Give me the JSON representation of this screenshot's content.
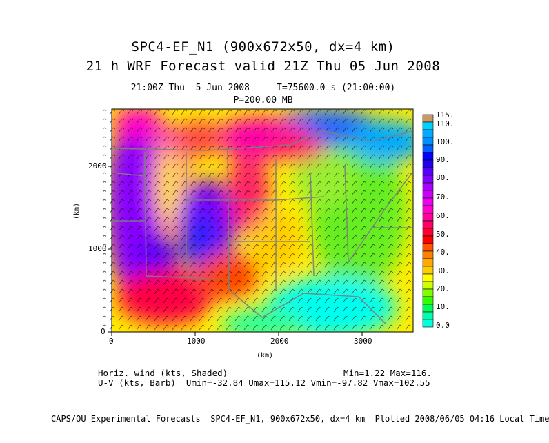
{
  "titles": {
    "line1": "SPC4-EF_N1 (900x672x50, dx=4 km)",
    "line2": "21 h WRF Forecast valid 21Z Thu 05 Jun 2008",
    "line3": "21:00Z Thu  5 Jun 2008     T=75600.0 s (21:00:00)",
    "line4": "P=200.00 MB"
  },
  "axes": {
    "x_ticks": [
      "0",
      "1000",
      "2000",
      "3000"
    ],
    "y_ticks": [
      "0",
      "1000",
      "2000"
    ],
    "x_label": "(km)",
    "y_label": "(km)"
  },
  "colorbar": {
    "labels": [
      "115.",
      "110.",
      "100.",
      "90.",
      "80.",
      "70.",
      "60.",
      "50.",
      "40.",
      "30.",
      "20.",
      "10.",
      "0.0"
    ],
    "colors": [
      "#cc9966",
      "#00d2ff",
      "#0090ff",
      "#0000ff",
      "#8000ff",
      "#cc00ff",
      "#ff00cc",
      "#ff0066",
      "#ff0000",
      "#ff8000",
      "#ffff00",
      "#80ff00",
      "#00ff00",
      "#00ffaa",
      "#00ffff"
    ]
  },
  "info": {
    "field_line": "Horiz. wind (kts, Shaded)",
    "minmax": "Min=1.22 Max=116.",
    "barb_line": "U-V (kts, Barb)  Umin=-32.84 Umax=115.12 Vmin=-97.82 Vmax=102.55"
  },
  "footer": "CAPS/OU Experimental Forecasts  SPC4-EF_N1, 900x672x50, dx=4 km  Plotted 2008/06/05 04:16 Local Time"
}
